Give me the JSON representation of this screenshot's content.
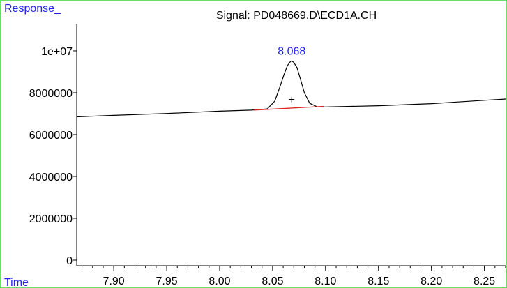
{
  "chart_data": {
    "type": "line",
    "title": "Signal: PD048669.D\\ECD1A.CH",
    "ylabel": "Response_",
    "xlabel": "Time",
    "xlim": [
      7.865,
      8.27
    ],
    "ylim": [
      0,
      11000000
    ],
    "grid": false,
    "x_ticks": [
      7.9,
      7.95,
      8.0,
      8.05,
      8.1,
      8.15,
      8.2,
      8.25
    ],
    "x_tick_labels": [
      "7.90",
      "7.95",
      "8.00",
      "8.05",
      "8.10",
      "8.15",
      "8.20",
      "8.25"
    ],
    "y_ticks": [
      0,
      2000000,
      4000000,
      6000000,
      8000000,
      10000000
    ],
    "y_tick_labels": [
      "0",
      "2000000",
      "4000000",
      "6000000",
      "8000000",
      "1e+07"
    ],
    "series": [
      {
        "color": "#000000",
        "x": [
          7.865,
          7.9,
          7.95,
          8.0,
          8.03,
          8.045,
          8.052,
          8.057,
          8.061,
          8.064,
          8.067,
          8.068,
          8.07,
          8.073,
          8.076,
          8.08,
          8.085,
          8.092,
          8.1,
          8.15,
          8.2,
          8.25,
          8.27
        ],
        "y": [
          6850000,
          6920000,
          7010000,
          7120000,
          7170000,
          7230000,
          7600000,
          8300000,
          8900000,
          9300000,
          9500000,
          9520000,
          9450000,
          9200000,
          8700000,
          8000000,
          7500000,
          7330000,
          7320000,
          7380000,
          7480000,
          7640000,
          7700000
        ]
      }
    ],
    "baseline": {
      "color": "#dd2222",
      "x": [
        8.032,
        8.098
      ],
      "y": [
        7170000,
        7350000
      ]
    },
    "annotations": [
      {
        "text": "8.068",
        "x": 8.068,
        "y": 9520000,
        "color": "#2222ee"
      },
      {
        "text": "+",
        "x": 8.068,
        "y": 7700000,
        "color": "#000000"
      }
    ]
  }
}
